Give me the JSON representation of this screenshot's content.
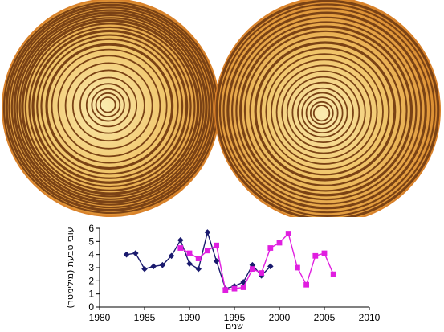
{
  "figure": {
    "rings_illustration": "two-tree-ring-cross-sections",
    "ring_colors": {
      "light": "#f3d98a",
      "mid": "#e9a347",
      "dark": "#7a4215",
      "outer": "#d9822b"
    }
  },
  "chart_data": {
    "type": "line",
    "xlabel": "שנים",
    "ylabel": "עובי טבעת (מילימטר)",
    "xlim": [
      1980,
      2010
    ],
    "ylim": [
      0,
      6
    ],
    "x_ticks": [
      "1980",
      "1985",
      "1990",
      "1995",
      "2000",
      "2005",
      "2010"
    ],
    "y_ticks": [
      "0",
      "1",
      "2",
      "3",
      "4",
      "5",
      "6"
    ],
    "grid": false,
    "legend": "none",
    "series": [
      {
        "color": "#1a1a6e",
        "marker": "diamond",
        "x": [
          1983,
          1984,
          1985,
          1986,
          1987,
          1988,
          1989,
          1990,
          1991,
          1992,
          1993,
          1994,
          1995,
          1996,
          1997,
          1998,
          1999
        ],
        "y": [
          4.0,
          4.1,
          2.9,
          3.1,
          3.2,
          3.9,
          5.1,
          3.3,
          2.9,
          5.7,
          3.5,
          1.4,
          1.6,
          1.9,
          3.2,
          2.4,
          3.1
        ]
      },
      {
        "color": "#e01ee0",
        "marker": "square",
        "x": [
          1989,
          1990,
          1991,
          1992,
          1993,
          1994,
          1995,
          1996,
          1997,
          1998,
          1999,
          2000,
          2001,
          2002,
          2003,
          2004,
          2005,
          2006
        ],
        "y": [
          4.5,
          4.1,
          3.7,
          4.3,
          4.7,
          1.3,
          1.4,
          1.5,
          2.9,
          2.6,
          4.5,
          4.9,
          5.6,
          3.0,
          1.7,
          3.9,
          4.1,
          2.5
        ]
      }
    ]
  }
}
